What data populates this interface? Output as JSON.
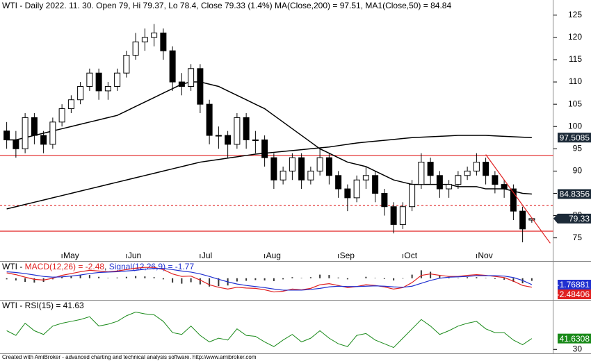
{
  "chart_data": [
    {
      "type": "candlestick",
      "title": "WTI - Daily 2022. 11. 30. Open 79, Hi 79.37, Lo 78.4, Close 79.33 (1.4%) MA(Close,200) = 97.51, MA1(Close,50) = 84.84",
      "categories": [
        null,
        null,
        null,
        null,
        null,
        null,
        "May",
        null,
        null,
        null,
        null,
        null,
        null,
        "Jun",
        null,
        null,
        null,
        null,
        null,
        null,
        null,
        "Jul",
        null,
        null,
        null,
        null,
        null,
        null,
        "Aug",
        null,
        null,
        null,
        null,
        null,
        null,
        null,
        "Sep",
        null,
        null,
        null,
        null,
        null,
        null,
        "Oct",
        null,
        null,
        null,
        null,
        null,
        null,
        null,
        "Nov",
        null,
        null,
        null,
        null,
        null,
        null
      ],
      "open": [
        99,
        97,
        95,
        102,
        98,
        96,
        101,
        104,
        106,
        109,
        112,
        108,
        109,
        112,
        116,
        119,
        120,
        121,
        117,
        110,
        109,
        113,
        105,
        98,
        98,
        96,
        102,
        97,
        97,
        93,
        88,
        90,
        93,
        88,
        90,
        93,
        89,
        86,
        84,
        88,
        89,
        85,
        82,
        78,
        82,
        87,
        92,
        89,
        86,
        87,
        89,
        90,
        92,
        89,
        87,
        86,
        81,
        79
      ],
      "high": [
        101,
        99,
        103,
        103,
        99,
        102,
        105,
        107,
        110,
        113,
        113,
        110,
        113,
        117,
        121,
        122,
        123,
        122,
        118,
        112,
        114,
        114,
        106,
        100,
        99,
        103,
        103,
        99,
        98,
        94,
        91,
        94,
        94,
        91,
        95,
        94,
        90,
        87,
        89,
        91,
        90,
        86,
        83,
        83,
        88,
        94,
        93,
        90,
        88,
        90,
        91,
        94,
        93,
        90,
        88,
        87,
        82,
        79.37
      ],
      "low": [
        95,
        93,
        94,
        96,
        94,
        95,
        100,
        103,
        105,
        108,
        106,
        106,
        108,
        111,
        115,
        117,
        118,
        115,
        108,
        107,
        108,
        103,
        96,
        95,
        93,
        95,
        95,
        94,
        91,
        86,
        87,
        88,
        86,
        87,
        89,
        87,
        84,
        81,
        83,
        86,
        83,
        80,
        76,
        77,
        81,
        86,
        87,
        84,
        84,
        86,
        88,
        89,
        87,
        85,
        84,
        79,
        74,
        78.4
      ],
      "close": [
        97,
        95,
        102,
        98,
        96,
        101,
        104,
        106,
        109,
        112,
        108,
        109,
        112,
        116,
        119,
        120,
        121,
        117,
        110,
        109,
        113,
        105,
        98,
        98,
        96,
        102,
        97,
        97,
        93,
        88,
        90,
        93,
        88,
        90,
        93,
        89,
        86,
        84,
        88,
        89,
        85,
        82,
        78,
        82,
        87,
        92,
        89,
        86,
        87,
        89,
        90,
        92,
        89,
        87,
        86,
        81,
        77,
        79.33
      ],
      "series": [
        {
          "name": "MA(Close,200)",
          "color": "#000000",
          "values": [
            81.5,
            82,
            82.5,
            83,
            83.5,
            84,
            84.5,
            85,
            85.5,
            86,
            86.5,
            87,
            87.5,
            88,
            88.5,
            89,
            89.5,
            90,
            90.5,
            91,
            91.5,
            92,
            92.3,
            92.6,
            92.9,
            93.2,
            93.5,
            93.8,
            94,
            94.2,
            94.4,
            94.6,
            94.8,
            95,
            95.2,
            95.4,
            95.7,
            96,
            96.3,
            96.5,
            96.7,
            96.9,
            97.1,
            97.3,
            97.5,
            97.6,
            97.7,
            97.8,
            97.9,
            98,
            98,
            98,
            98,
            97.9,
            97.8,
            97.7,
            97.6,
            97.51
          ]
        },
        {
          "name": "MA1(Close,50)",
          "color": "#000000",
          "values": [
            97,
            97,
            97.5,
            98,
            98.5,
            99,
            99.5,
            100,
            100.5,
            101,
            101.5,
            102,
            102.5,
            103.5,
            104.5,
            105.5,
            106.5,
            107.5,
            108.5,
            109.5,
            110,
            110,
            109.5,
            109,
            108,
            107,
            106,
            105,
            104,
            102.5,
            101,
            99.5,
            98,
            96.5,
            95,
            94,
            93,
            92,
            91.5,
            91,
            90,
            89,
            88,
            87.5,
            87,
            87,
            87,
            87,
            87,
            86.5,
            86.5,
            86.5,
            86,
            86,
            86,
            85.5,
            85,
            84.84
          ]
        }
      ],
      "hlines": [
        {
          "value": 93.5,
          "color": "#e02020",
          "style": "solid"
        },
        {
          "value": 76.5,
          "color": "#e02020",
          "style": "solid"
        },
        {
          "value": 82.3,
          "color": "#e02020",
          "style": "dashed"
        }
      ],
      "trendline": {
        "x": [
          52,
          59
        ],
        "y": [
          93.7,
          73.8
        ],
        "color": "#e02020"
      },
      "price_tags": [
        97.5085,
        84.8356,
        79.33
      ],
      "ylim": [
        69.8,
        128.4
      ],
      "yticks": [
        75,
        80,
        85,
        90,
        95,
        100,
        105,
        110,
        115,
        120,
        125
      ]
    },
    {
      "type": "macd",
      "title_parts": [
        "WTI - ",
        "MACD(12,26) = -2.48",
        ", ",
        "Signal(12,26,9) = -1.77"
      ],
      "series": [
        {
          "name": "MACD",
          "color": "#e02020",
          "values": [
            1.5,
            1,
            0.3,
            -0.3,
            -0.5,
            0,
            0.8,
            1.3,
            1.8,
            2.2,
            2,
            1.8,
            2,
            2.4,
            2.8,
            3,
            3,
            2.4,
            1.2,
            0.5,
            0.6,
            -0.5,
            -1.8,
            -2.5,
            -3,
            -2.5,
            -2.7,
            -2.8,
            -3.2,
            -3.8,
            -3.6,
            -3,
            -3.2,
            -2.8,
            -1.8,
            -1.5,
            -2,
            -2.6,
            -2.3,
            -1.8,
            -2,
            -2.4,
            -3,
            -2.6,
            -1.2,
            0.8,
            1.2,
            0.8,
            0.5,
            0.5,
            0.8,
            1,
            0.8,
            0.5,
            0.2,
            -0.8,
            -2,
            -2.48
          ]
        },
        {
          "name": "Signal",
          "color": "#2030d0",
          "values": [
            1.8,
            1.6,
            1.3,
            0.9,
            0.5,
            0.3,
            0.4,
            0.6,
            0.9,
            1.3,
            1.6,
            1.7,
            1.8,
            2,
            2.2,
            2.5,
            2.7,
            2.7,
            2.4,
            2,
            1.7,
            1.2,
            0.5,
            -0.3,
            -1,
            -1.6,
            -2,
            -2.3,
            -2.6,
            -3,
            -3.3,
            -3.3,
            -3.3,
            -3.1,
            -2.8,
            -2.4,
            -2.2,
            -2.3,
            -2.3,
            -2.2,
            -2.1,
            -2.2,
            -2.4,
            -2.5,
            -2.2,
            -1.4,
            -0.6,
            0,
            0.3,
            0.4,
            0.5,
            0.7,
            0.7,
            0.7,
            0.6,
            0.2,
            -0.6,
            -1.77
          ]
        }
      ],
      "histogram": {
        "color": "#333333",
        "values": [
          -0.3,
          -0.6,
          -1,
          -1.2,
          -1,
          -0.3,
          0.4,
          0.7,
          0.9,
          0.9,
          0.4,
          0.1,
          0.2,
          0.4,
          0.6,
          0.5,
          0.3,
          -0.3,
          -1.2,
          -1.5,
          -1.1,
          -1.7,
          -2.3,
          -2.2,
          -2,
          -0.9,
          -0.7,
          -0.5,
          -0.6,
          -0.8,
          -0.3,
          0.3,
          0.1,
          0.3,
          1,
          0.9,
          0.2,
          -0.3,
          0,
          0.4,
          0.1,
          -0.2,
          -0.6,
          -0.1,
          1,
          2.2,
          1.8,
          0.8,
          0.2,
          0.1,
          0.3,
          0.3,
          0.1,
          -0.2,
          -0.4,
          -1,
          -1.4,
          -0.71
        ]
      },
      "tags": [
        {
          "value": -1.76881,
          "color": "#2030d0"
        },
        {
          "value": -2.48406,
          "color": "#e02020"
        }
      ],
      "ylim": [
        -6,
        4
      ]
    },
    {
      "type": "line",
      "title": "WTI - RSI(15) = 41.63",
      "series": [
        {
          "name": "RSI(15)",
          "color": "#1a8a1a",
          "values": [
            50,
            45,
            58,
            50,
            46,
            55,
            58,
            60,
            62,
            65,
            55,
            57,
            60,
            66,
            70,
            68,
            67,
            60,
            48,
            46,
            55,
            45,
            38,
            42,
            40,
            52,
            45,
            44,
            38,
            33,
            40,
            46,
            38,
            42,
            50,
            42,
            36,
            33,
            45,
            47,
            40,
            36,
            32,
            42,
            52,
            62,
            55,
            46,
            50,
            55,
            58,
            60,
            52,
            48,
            48,
            40,
            35,
            41.63
          ]
        }
      ],
      "tags": [
        {
          "value": 41.6308,
          "color": "#1a8a1a"
        }
      ],
      "ylim": [
        25,
        83
      ],
      "yticks": [
        30
      ]
    }
  ],
  "footer": "Created with AmiBroker - advanced charting and technical analysis software. http://www.amibroker.com"
}
